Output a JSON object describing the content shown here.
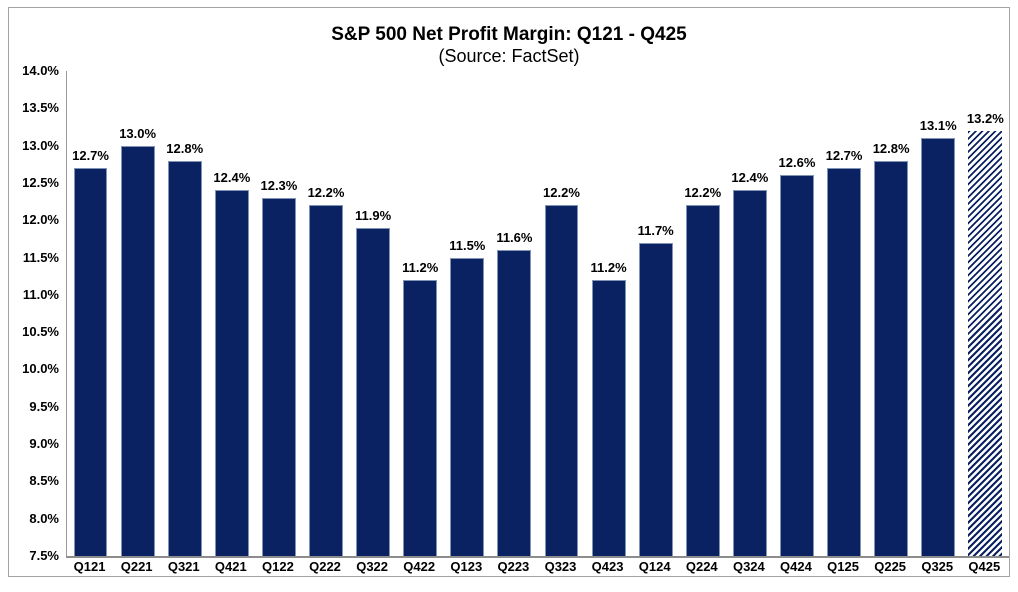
{
  "chart_data": {
    "type": "bar",
    "title": "S&P 500 Net Profit Margin: Q121 - Q425",
    "subtitle": "(Source: FactSet)",
    "categories": [
      "Q121",
      "Q221",
      "Q321",
      "Q421",
      "Q122",
      "Q222",
      "Q322",
      "Q422",
      "Q123",
      "Q223",
      "Q323",
      "Q423",
      "Q124",
      "Q224",
      "Q324",
      "Q424",
      "Q125",
      "Q225",
      "Q325",
      "Q425"
    ],
    "values": [
      12.7,
      13.0,
      12.8,
      12.4,
      12.3,
      12.2,
      11.9,
      11.2,
      11.5,
      11.6,
      12.2,
      11.2,
      11.7,
      12.2,
      12.4,
      12.6,
      12.7,
      12.8,
      13.1,
      13.2
    ],
    "data_labels": [
      "12.7%",
      "13.0%",
      "12.8%",
      "12.4%",
      "12.3%",
      "12.2%",
      "11.9%",
      "11.2%",
      "11.5%",
      "11.6%",
      "12.2%",
      "11.2%",
      "11.7%",
      "12.2%",
      "12.4%",
      "12.6%",
      "12.7%",
      "12.8%",
      "13.1%",
      "13.2%"
    ],
    "yticks": [
      "14.0%",
      "13.5%",
      "13.0%",
      "12.5%",
      "12.0%",
      "11.5%",
      "11.0%",
      "10.5%",
      "10.0%",
      "9.5%",
      "9.0%",
      "8.5%",
      "8.0%",
      "7.5%"
    ],
    "ylim": [
      7.5,
      14.0
    ],
    "ytick_step": 0.5,
    "grid": false,
    "legend": "none",
    "xlabel": "",
    "ylabel": "",
    "bar_color": "#0b2262",
    "bar_border_color": "#8194b6",
    "axis_color": "#8c8c8c",
    "label_color": "#000000",
    "hatched_categories": [
      "Q425"
    ]
  }
}
